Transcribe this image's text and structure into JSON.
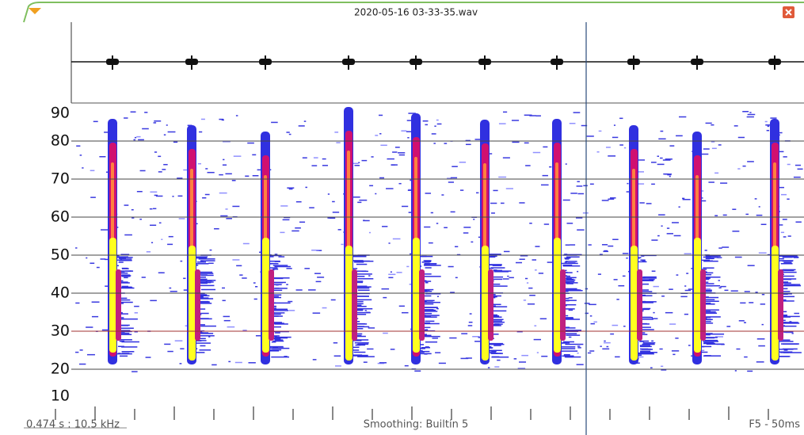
{
  "window": {
    "title": "2020-05-16 03-33-35.wav"
  },
  "frequency_axis": {
    "ylim": [
      10,
      90
    ],
    "ticks": [
      90,
      80,
      70,
      60,
      50,
      40,
      30,
      20,
      10
    ],
    "highlight": 30
  },
  "status": {
    "cursor": "0.474 s : 10.5 kHz",
    "smoothing": "Smoothing: Builtin 5",
    "mode": "F5 - 50ms"
  }
}
